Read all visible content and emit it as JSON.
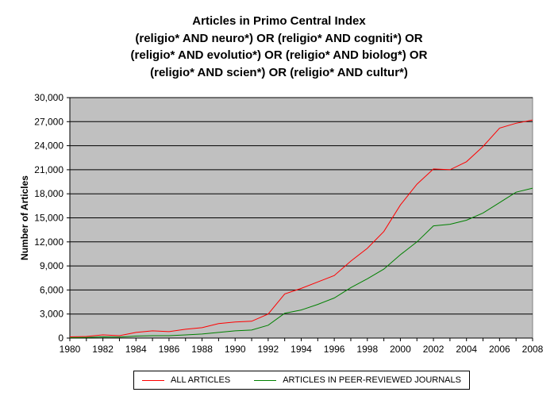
{
  "chart_data": {
    "type": "line",
    "title": [
      "Articles in Primo Central Index",
      "(religio* AND neuro*) OR (religio* AND cogniti*) OR",
      "(religio* AND evolutio*) OR (religio* AND biolog*) OR",
      "(religio* AND scien*) OR (religio* AND cultur*)"
    ],
    "xlabel": "",
    "ylabel": "Number of Articles",
    "xlim": [
      1980,
      2008
    ],
    "ylim": [
      0,
      30000
    ],
    "yticks": [
      "0",
      "3,000",
      "6,000",
      "9,000",
      "12,000",
      "15,000",
      "18,000",
      "21,000",
      "24,000",
      "27,000",
      "30,000"
    ],
    "xticks": [
      "1980",
      "1982",
      "1984",
      "1986",
      "1988",
      "1990",
      "1992",
      "1994",
      "1996",
      "1998",
      "2000",
      "2002",
      "2004",
      "2006",
      "2008"
    ],
    "grid": true,
    "plot_background": "#c0c0c0",
    "legend_position": "bottom",
    "x": [
      1980,
      1981,
      1982,
      1983,
      1984,
      1985,
      1986,
      1987,
      1988,
      1989,
      1990,
      1991,
      1992,
      1993,
      1994,
      1995,
      1996,
      1997,
      1998,
      1999,
      2000,
      2001,
      2002,
      2003,
      2004,
      2005,
      2006,
      2007,
      2008
    ],
    "series": [
      {
        "name": "ALL ARTICLES",
        "color": "#ff0000",
        "values": [
          150,
          200,
          400,
          300,
          700,
          900,
          800,
          1100,
          1300,
          1800,
          2000,
          2100,
          3000,
          5500,
          6200,
          7000,
          7800,
          9600,
          11200,
          13300,
          16600,
          19200,
          21100,
          21000,
          22000,
          23900,
          26200,
          26800,
          27200
        ]
      },
      {
        "name": "ARTICLES IN PEER-REVIEWED JOURNALS",
        "color": "#008000",
        "values": [
          50,
          80,
          150,
          120,
          250,
          300,
          300,
          400,
          500,
          700,
          900,
          1000,
          1600,
          3100,
          3500,
          4200,
          5000,
          6300,
          7400,
          8600,
          10400,
          12000,
          14000,
          14200,
          14700,
          15600,
          16900,
          18200,
          18700
        ]
      }
    ]
  }
}
